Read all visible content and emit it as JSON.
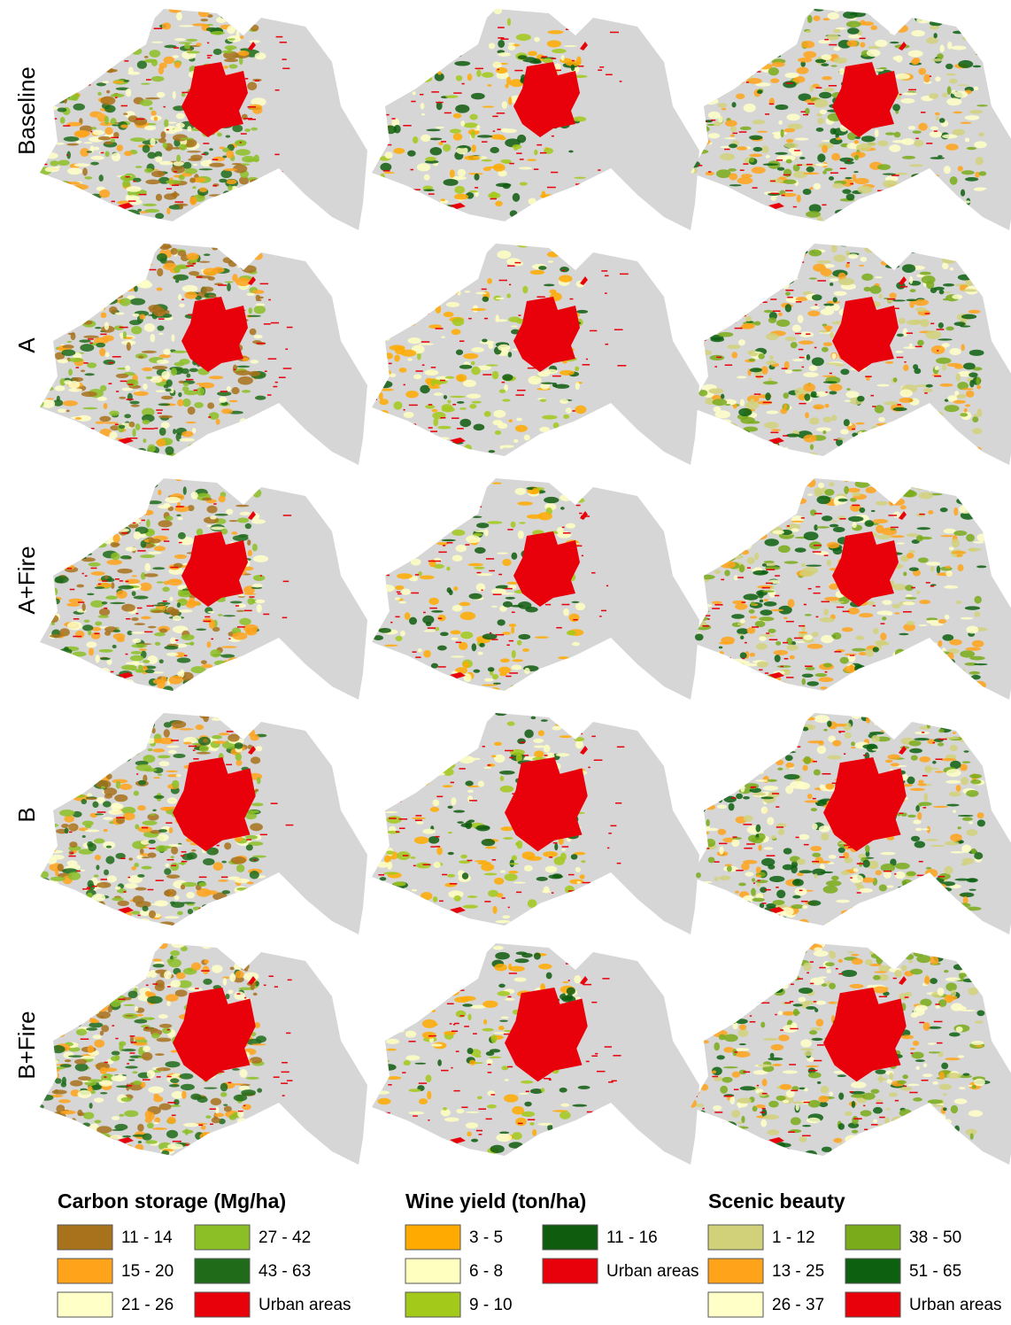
{
  "rows": [
    "Baseline",
    "A",
    "A+Fire",
    "B",
    "B+Fire"
  ],
  "legends": [
    {
      "title": "Carbon storage (Mg/ha)",
      "items": [
        {
          "label": "11 - 14",
          "color": "#a8721c"
        },
        {
          "label": "15 - 20",
          "color": "#ffa31a"
        },
        {
          "label": "21 - 26",
          "color": "#ffffc8"
        },
        {
          "label": "27 - 42",
          "color": "#8cbf26"
        },
        {
          "label": "43 - 63",
          "color": "#1f6b1a"
        },
        {
          "label": "Urban areas",
          "color": "#e8000b"
        }
      ]
    },
    {
      "title": "Wine yield (ton/ha)",
      "items": [
        {
          "label": "3 - 5",
          "color": "#ffaa00"
        },
        {
          "label": "6 - 8",
          "color": "#ffffc0"
        },
        {
          "label": "9 - 10",
          "color": "#a3c91a"
        },
        {
          "label": "11 - 16",
          "color": "#0f5c0f"
        },
        {
          "label": "Urban areas",
          "color": "#e8000b"
        }
      ]
    },
    {
      "title": "Scenic beauty",
      "items": [
        {
          "label": "1 - 12",
          "color": "#d1d17a"
        },
        {
          "label": "13 - 25",
          "color": "#ffa31a"
        },
        {
          "label": "26 - 37",
          "color": "#ffffc8"
        },
        {
          "label": "38 - 50",
          "color": "#7aab1a"
        },
        {
          "label": "51 - 65",
          "color": "#0d6010"
        },
        {
          "label": "Urban areas",
          "color": "#e8000b"
        }
      ]
    }
  ]
}
